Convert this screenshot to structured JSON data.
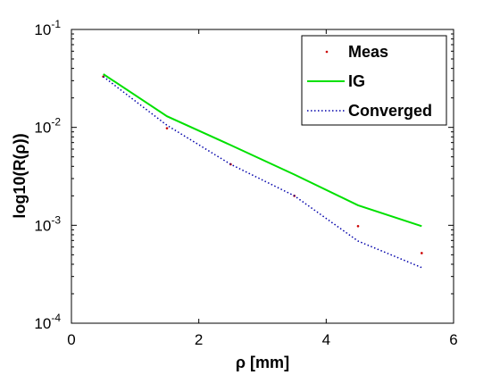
{
  "chart_data": {
    "type": "line",
    "title": "",
    "xlabel": "ρ [mm]",
    "ylabel": "log10(R(ρ))",
    "xlim": [
      0,
      6
    ],
    "ylim_log10": [
      -4,
      -1
    ],
    "y_scale": "log",
    "grid": false,
    "legend_position": "top-right",
    "x_ticks": [
      {
        "value": 0,
        "label": "0"
      },
      {
        "value": 2,
        "label": "2"
      },
      {
        "value": 4,
        "label": "4"
      },
      {
        "value": 6,
        "label": "6"
      }
    ],
    "y_ticks": [
      {
        "exp": -1,
        "base": "10",
        "power": "-1"
      },
      {
        "exp": -2,
        "base": "10",
        "power": "-2"
      },
      {
        "exp": -3,
        "base": "10",
        "power": "-3"
      },
      {
        "exp": -4,
        "base": "10",
        "power": "-4"
      }
    ],
    "series": [
      {
        "name": "Meas",
        "style": "points",
        "color": "#cc0000",
        "x": [
          0.5,
          1.5,
          2.5,
          3.5,
          4.5,
          5.5
        ],
        "y": [
          0.033,
          0.0098,
          0.0042,
          0.002,
          0.00098,
          0.00052
        ]
      },
      {
        "name": "IG",
        "style": "solid",
        "color": "#00e000",
        "x": [
          0.5,
          1.5,
          2.5,
          3.5,
          4.5,
          5.5
        ],
        "y": [
          0.035,
          0.013,
          0.0066,
          0.0033,
          0.0016,
          0.00098
        ]
      },
      {
        "name": "Converged",
        "style": "dotted",
        "color": "#0000aa",
        "x": [
          0.5,
          1.5,
          2.5,
          3.5,
          4.5,
          5.5
        ],
        "y": [
          0.033,
          0.0105,
          0.0042,
          0.002,
          0.00069,
          0.00037
        ]
      }
    ]
  }
}
